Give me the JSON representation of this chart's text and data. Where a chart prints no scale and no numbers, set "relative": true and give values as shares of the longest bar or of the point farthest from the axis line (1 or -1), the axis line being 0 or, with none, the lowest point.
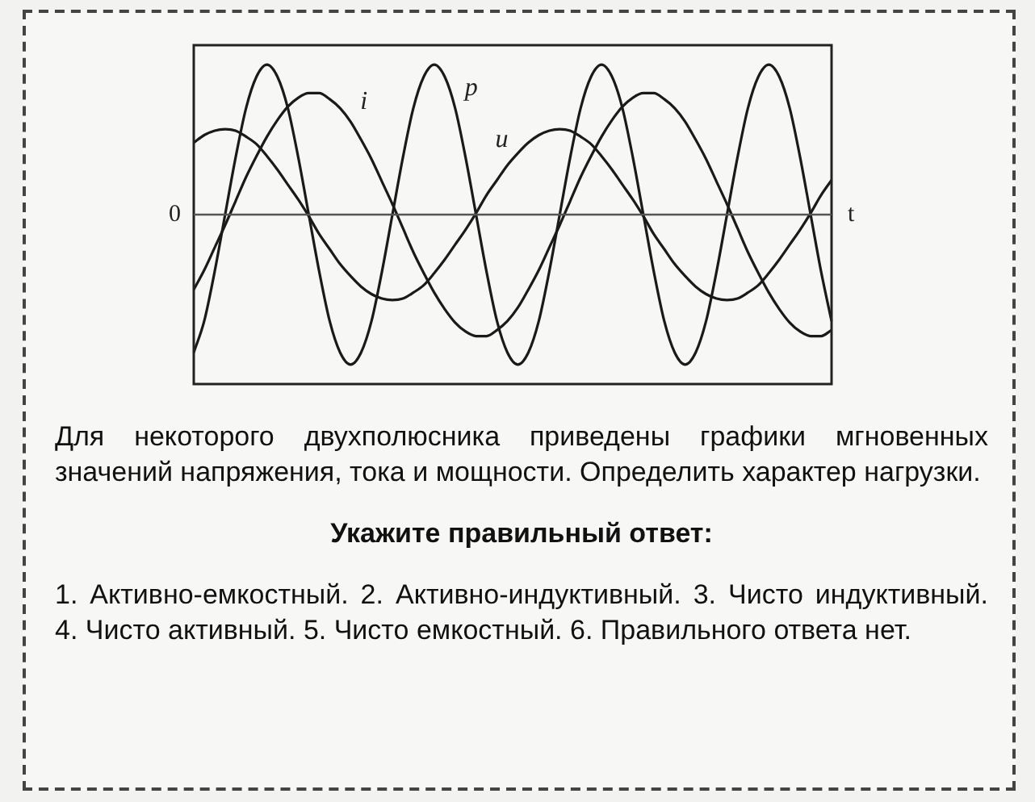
{
  "chart_data": {
    "type": "line",
    "relative": true,
    "xlabel": "t",
    "legend": false,
    "marker": "none",
    "line_style": "solid",
    "categories": [
      null,
      null,
      null,
      null,
      null,
      null,
      null,
      null,
      null,
      null,
      null,
      null,
      null,
      null,
      null,
      null,
      null,
      null,
      null,
      null,
      null,
      null,
      null,
      null,
      null,
      null,
      null,
      null,
      null,
      null,
      null,
      null,
      null,
      null,
      null,
      null,
      null,
      null,
      null,
      null,
      null,
      null,
      null,
      null,
      null,
      null,
      null,
      null,
      null,
      null,
      null,
      null,
      null,
      null,
      null,
      null,
      null,
      null,
      null,
      null,
      null,
      null
    ],
    "series": [
      {
        "name": "p",
        "color": "#1a1a1a",
        "values": [
          -0.92,
          -0.71,
          -0.38,
          0,
          0.38,
          0.71,
          0.92,
          1,
          0.92,
          0.71,
          0.38,
          0,
          -0.38,
          -0.71,
          -0.92,
          -1,
          -0.92,
          -0.71,
          -0.38,
          0,
          0.38,
          0.71,
          0.92,
          1,
          0.92,
          0.71,
          0.38,
          0,
          -0.38,
          -0.71,
          -0.92,
          -1,
          -0.92,
          -0.71,
          -0.38,
          0,
          0.38,
          0.71,
          0.92,
          1,
          0.92,
          0.71,
          0.38,
          0,
          -0.38,
          -0.71,
          -0.92,
          -1,
          -0.92,
          -0.71,
          -0.38,
          0,
          0.38,
          0.71,
          0.92,
          1,
          0.92,
          0.71,
          0.38,
          0,
          -0.38,
          -0.71
        ]
      },
      {
        "name": "i",
        "color": "#1a1a1a",
        "values": [
          -0.5,
          -0.37,
          -0.22,
          -0.07,
          0.09,
          0.25,
          0.39,
          0.52,
          0.63,
          0.72,
          0.78,
          0.81,
          0.81,
          0.77,
          0.71,
          0.62,
          0.5,
          0.37,
          0.22,
          0.07,
          -0.09,
          -0.25,
          -0.39,
          -0.52,
          -0.63,
          -0.72,
          -0.78,
          -0.81,
          -0.81,
          -0.77,
          -0.71,
          -0.62,
          -0.5,
          -0.37,
          -0.22,
          -0.07,
          0.09,
          0.25,
          0.39,
          0.52,
          0.63,
          0.72,
          0.78,
          0.81,
          0.81,
          0.77,
          0.71,
          0.62,
          0.5,
          0.37,
          0.22,
          0.07,
          -0.09,
          -0.25,
          -0.39,
          -0.52,
          -0.63,
          -0.72,
          -0.78,
          -0.81,
          -0.81,
          -0.77
        ]
      },
      {
        "name": "u",
        "color": "#1a1a1a",
        "values": [
          0.48,
          0.53,
          0.56,
          0.57,
          0.56,
          0.52,
          0.47,
          0.39,
          0.3,
          0.2,
          0.1,
          -0.01,
          -0.13,
          -0.23,
          -0.33,
          -0.41,
          -0.48,
          -0.53,
          -0.56,
          -0.57,
          -0.56,
          -0.52,
          -0.47,
          -0.39,
          -0.3,
          -0.2,
          -0.1,
          0.01,
          0.13,
          0.23,
          0.33,
          0.41,
          0.48,
          0.53,
          0.56,
          0.57,
          0.56,
          0.52,
          0.47,
          0.39,
          0.3,
          0.2,
          0.1,
          -0.01,
          -0.13,
          -0.23,
          -0.33,
          -0.41,
          -0.48,
          -0.53,
          -0.56,
          -0.57,
          -0.56,
          -0.52,
          -0.47,
          -0.39,
          -0.3,
          -0.2,
          -0.1,
          0.01,
          0.13,
          0.23
        ]
      }
    ],
    "ref_lines": [
      {
        "axis": "y",
        "value": 0,
        "label": "0",
        "color": "#555555"
      }
    ],
    "annotations": [
      "Для некоторого двухполюсника приведены графики мгновенных значений напряжения, тока и мощности. Определить характер нагрузки.",
      "Укажите правильный ответ:",
      "1. Активно-емкостный.   2. Активно-индуктивный.   3. Чисто индуктивный.   4. Чисто активный.   5. Чисто емкостный.   6. Правильного ответа нет."
    ]
  }
}
